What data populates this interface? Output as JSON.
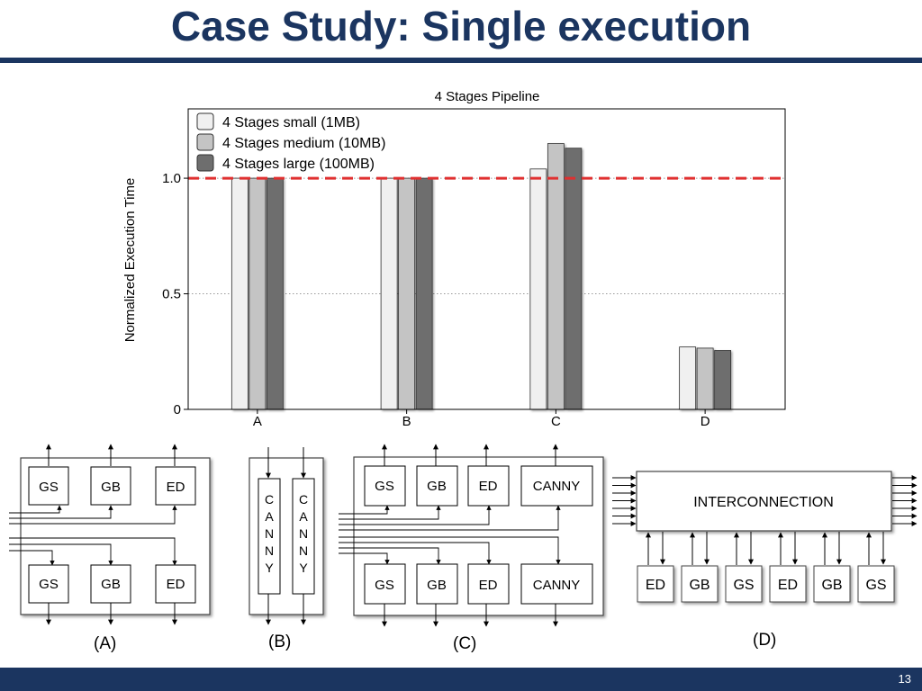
{
  "slide": {
    "title": "Case Study: Single execution",
    "page_number": "13",
    "theme_color": "#1b3560"
  },
  "chart_data": {
    "type": "bar",
    "title": "4 Stages Pipeline",
    "xlabel": "",
    "ylabel": "Normalized Execution Time",
    "categories": [
      "A",
      "B",
      "C",
      "D"
    ],
    "series": [
      {
        "name": "4 Stages small (1MB)",
        "color": "#f0f0f0",
        "values": [
          1.0,
          1.0,
          1.04,
          0.27
        ]
      },
      {
        "name": "4 Stages medium (10MB)",
        "color": "#c4c4c4",
        "values": [
          1.0,
          1.0,
          1.15,
          0.265
        ]
      },
      {
        "name": "4 Stages large (100MB)",
        "color": "#6e6e6e",
        "values": [
          1.0,
          1.0,
          1.13,
          0.255
        ]
      }
    ],
    "ylim": [
      0,
      1.3
    ],
    "yticks": [
      {
        "value": 0,
        "label": "0"
      },
      {
        "value": 0.5,
        "label": "0.5"
      },
      {
        "value": 1.0,
        "label": "1.0"
      }
    ],
    "grid": "dotted horizontal",
    "legend_position": "top-left",
    "reference_line": {
      "value": 1.0,
      "color": "#e03030",
      "style": "dashed"
    }
  },
  "diagrams": {
    "A": {
      "label": "(A)",
      "top_row": [
        "GS",
        "GB",
        "ED"
      ],
      "bottom_row": [
        "GS",
        "GB",
        "ED"
      ]
    },
    "B": {
      "label": "(B)",
      "columns": [
        "CANNY",
        "CANNY"
      ]
    },
    "C": {
      "label": "(C)",
      "top_row": [
        "GS",
        "GB",
        "ED",
        "CANNY"
      ],
      "bottom_row": [
        "GS",
        "GB",
        "ED",
        "CANNY"
      ]
    },
    "D": {
      "label": "(D)",
      "interconnect_label": "INTERCONNECTION",
      "bottom_row": [
        "ED",
        "GB",
        "GS",
        "ED",
        "GB",
        "GS"
      ]
    }
  }
}
